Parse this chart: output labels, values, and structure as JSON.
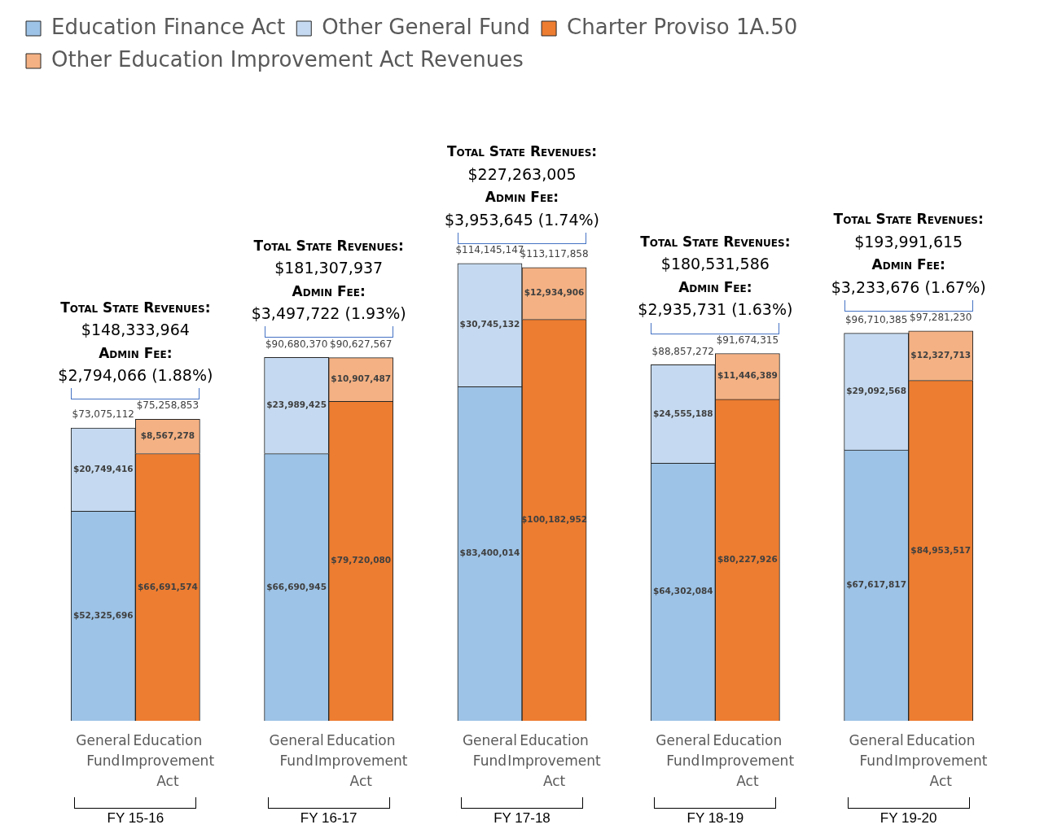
{
  "chart_data": {
    "type": "bar",
    "stacked": true,
    "legend": "top",
    "categories": [
      "General Fund",
      "Education Improvement Act",
      "General Fund",
      "Education Improvement Act",
      "General Fund",
      "Education Improvement Act",
      "General Fund",
      "Education Improvement Act",
      "General Fund",
      "Education Improvement Act"
    ],
    "series": [
      {
        "name": "Education Finance Act",
        "color": "#9dc3e6",
        "values": [
          52325696,
          null,
          66690945,
          null,
          83400014,
          null,
          64302084,
          null,
          67617817,
          null
        ],
        "value_labels": [
          "$52,325,696",
          null,
          "$66,690,945",
          null,
          "$83,400,014",
          null,
          "$64,302,084",
          null,
          "$67,617,817",
          null
        ]
      },
      {
        "name": "Other General Fund",
        "color": "#c5daf0",
        "values": [
          20749416,
          null,
          23989425,
          null,
          30745132,
          null,
          24555188,
          null,
          29092568,
          null
        ],
        "value_labels": [
          "$20,749,416",
          null,
          "$23,989,425",
          null,
          "$30,745,132",
          null,
          "$24,555,188",
          null,
          "$29,092,568",
          null
        ]
      },
      {
        "name": "Charter Proviso 1A.50",
        "color": "#ed7d31",
        "values": [
          null,
          66691574,
          null,
          79720080,
          null,
          100182952,
          null,
          80227926,
          null,
          84953517
        ],
        "value_labels": [
          null,
          "$66,691,574",
          null,
          "$79,720,080",
          null,
          "$100,182,952",
          null,
          "$80,227,926",
          null,
          "$84,953,517"
        ]
      },
      {
        "name": "Other Education Improvement Act Revenues",
        "color": "#f4b183",
        "values": [
          null,
          8567278,
          null,
          10907487,
          null,
          12934906,
          null,
          11446389,
          null,
          12327713
        ],
        "value_labels": [
          null,
          "$8,567,278",
          null,
          "$10,907,487",
          null,
          "$12,934,906",
          null,
          "$11,446,389",
          null,
          "$12,327,713"
        ]
      }
    ],
    "totals": [
      "$73,075,112",
      "$75,258,853",
      "$90,680,370",
      "$90,627,567",
      "$114,145,147",
      "$113,117,858",
      "$88,857,272",
      "$91,674,315",
      "$96,710,385",
      "$97,281,230"
    ],
    "annotations": [
      "Total State Revenues:\n$148,333,964\nAdmin Fee:\n$2,794,066 (1.88%)",
      "FY 15-16",
      "Total State Revenues:\n$181,307,937\nAdmin Fee:\n$3,497,722 (1.93%)",
      "FY 16-17",
      "Total State Revenues:\n$227,263,005\nAdmin Fee:\n$3,953,645 (1.74%)",
      "FY 17-18",
      "Total State Revenues:\n$180,531,586\nAdmin Fee:\n$2,935,731 (1.63%)",
      "FY 18-19",
      "Total State Revenues:\n$193,991,615\nAdmin Fee:\n$3,233,676 (1.67%)",
      "FY 19-20"
    ]
  }
}
